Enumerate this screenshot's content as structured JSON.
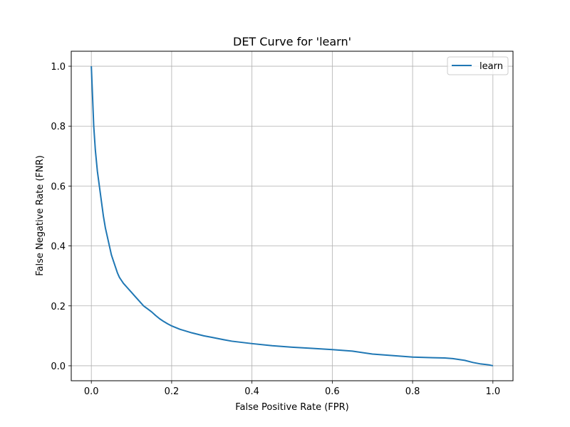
{
  "chart_data": {
    "type": "line",
    "title": "DET Curve for 'learn'",
    "xlabel": "False Positive Rate (FPR)",
    "ylabel": "False Negative Rate (FNR)",
    "xlim": [
      -0.05,
      1.05
    ],
    "ylim": [
      -0.05,
      1.05
    ],
    "xticks": [
      "0.0",
      "0.2",
      "0.4",
      "0.6",
      "0.8",
      "1.0"
    ],
    "yticks": [
      "0.0",
      "0.2",
      "0.4",
      "0.6",
      "0.8",
      "1.0"
    ],
    "grid": true,
    "legend_position": "top-right",
    "series": [
      {
        "name": "learn",
        "color": "#1f77b4",
        "x": [
          0.0,
          0.003,
          0.006,
          0.01,
          0.015,
          0.02,
          0.025,
          0.03,
          0.035,
          0.04,
          0.045,
          0.05,
          0.055,
          0.06,
          0.065,
          0.07,
          0.075,
          0.08,
          0.09,
          0.1,
          0.11,
          0.12,
          0.13,
          0.14,
          0.15,
          0.16,
          0.17,
          0.18,
          0.19,
          0.2,
          0.22,
          0.25,
          0.28,
          0.3,
          0.33,
          0.35,
          0.4,
          0.45,
          0.5,
          0.55,
          0.6,
          0.65,
          0.7,
          0.75,
          0.8,
          0.85,
          0.88,
          0.9,
          0.93,
          0.95,
          0.97,
          0.99,
          1.0
        ],
        "y": [
          1.0,
          0.9,
          0.8,
          0.72,
          0.65,
          0.6,
          0.55,
          0.5,
          0.46,
          0.43,
          0.4,
          0.37,
          0.35,
          0.33,
          0.31,
          0.295,
          0.285,
          0.275,
          0.26,
          0.245,
          0.23,
          0.215,
          0.2,
          0.19,
          0.18,
          0.168,
          0.157,
          0.148,
          0.14,
          0.133,
          0.122,
          0.11,
          0.1,
          0.095,
          0.087,
          0.082,
          0.074,
          0.067,
          0.062,
          0.058,
          0.054,
          0.049,
          0.039,
          0.034,
          0.029,
          0.027,
          0.026,
          0.024,
          0.018,
          0.011,
          0.006,
          0.003,
          0.0
        ]
      }
    ]
  }
}
